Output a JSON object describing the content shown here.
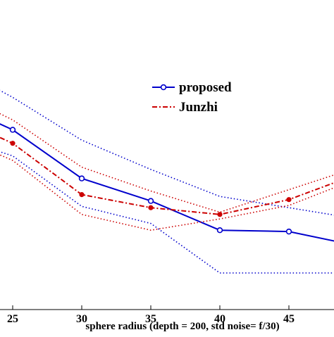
{
  "chart_data": {
    "type": "line",
    "title": "",
    "xlabel": "sphere radius (depth = 200, std noise= f/30)",
    "ylabel": "",
    "x_ticks": [
      25,
      30,
      35,
      40,
      45
    ],
    "xlim": [
      22,
      50
    ],
    "ylim": [
      0,
      1
    ],
    "grid": false,
    "legend_position": "upper-middle-right",
    "series": [
      {
        "name": "proposed",
        "color": "#0000cc",
        "style": "solid-circle-markers",
        "x": [
          22,
          25,
          30,
          35,
          40,
          45,
          50
        ],
        "y": [
          0.51,
          0.468,
          0.36,
          0.31,
          0.245,
          0.242,
          0.21
        ]
      },
      {
        "name": "",
        "color": "#0000cc",
        "style": "dotted-upper-band",
        "x": [
          22,
          25,
          30,
          35,
          40,
          45,
          50
        ],
        "y": [
          0.59,
          0.54,
          0.445,
          0.38,
          0.32,
          0.295,
          0.27
        ]
      },
      {
        "name": "",
        "color": "#0000cc",
        "style": "dotted-lower-band",
        "x": [
          22,
          25,
          30,
          35,
          40,
          45,
          50
        ],
        "y": [
          0.44,
          0.41,
          0.298,
          0.26,
          0.15,
          0.15,
          0.15
        ]
      },
      {
        "name": "Junzhi",
        "color": "#cc0000",
        "style": "dash-dot-filled-markers",
        "x": [
          22,
          25,
          30,
          35,
          40,
          45,
          50
        ],
        "y": [
          0.48,
          0.438,
          0.324,
          0.295,
          0.28,
          0.313,
          0.37
        ]
      },
      {
        "name": "",
        "color": "#cc0000",
        "style": "dotted-upper-band",
        "x": [
          22,
          25,
          30,
          35,
          40,
          45,
          50
        ],
        "y": [
          0.535,
          0.49,
          0.385,
          0.332,
          0.285,
          0.335,
          0.385
        ]
      },
      {
        "name": "",
        "color": "#cc0000",
        "style": "dotted-lower-band",
        "x": [
          22,
          25,
          30,
          35,
          40,
          45,
          50
        ],
        "y": [
          0.44,
          0.4,
          0.28,
          0.245,
          0.27,
          0.3,
          0.36
        ]
      }
    ]
  }
}
